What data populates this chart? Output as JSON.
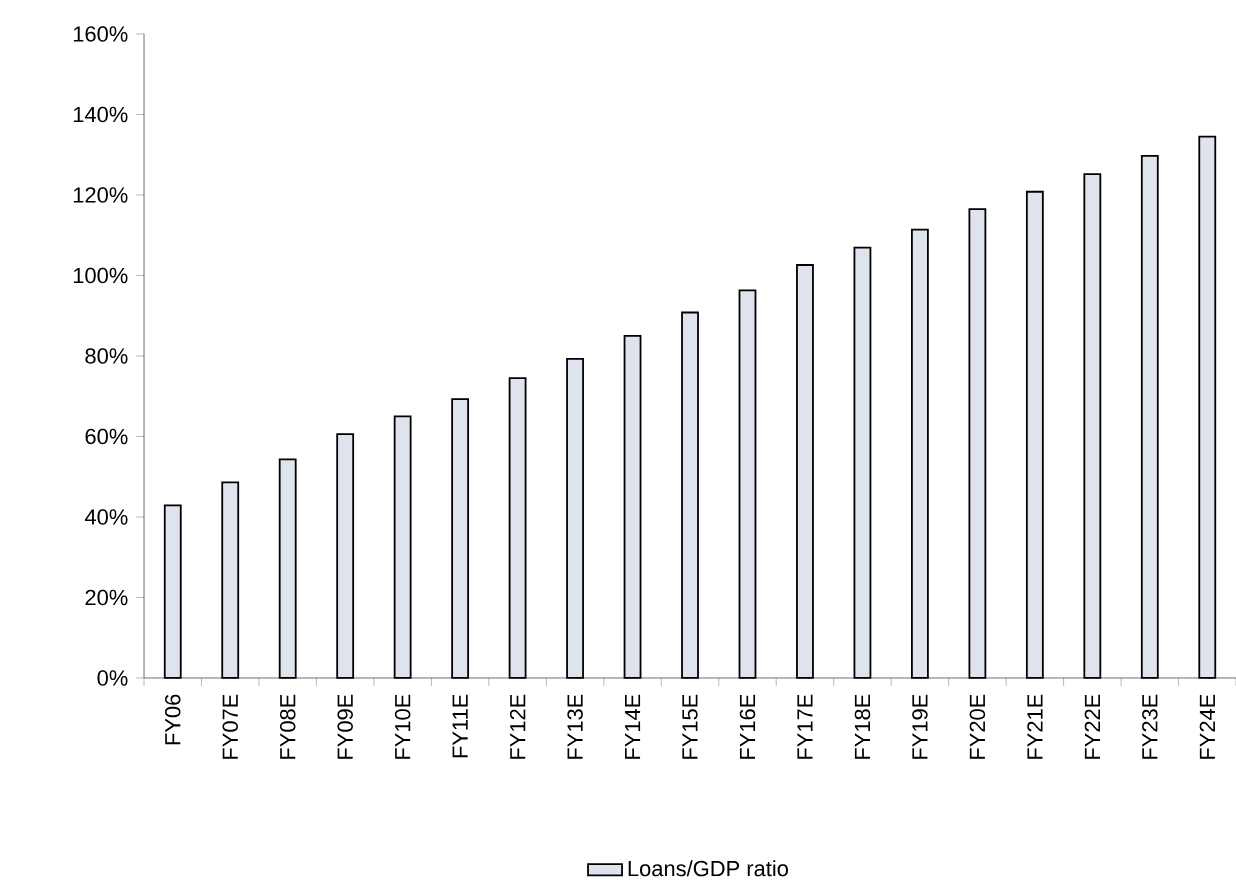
{
  "chart_data": {
    "type": "bar",
    "categories": [
      "FY06",
      "FY07E",
      "FY08E",
      "FY09E",
      "FY10E",
      "FY11E",
      "FY12E",
      "FY13E",
      "FY14E",
      "FY15E",
      "FY16E",
      "FY17E",
      "FY18E",
      "FY19E",
      "FY20E",
      "FY21E",
      "FY22E",
      "FY23E",
      "FY24E"
    ],
    "series": [
      {
        "name": "Loans/GDP ratio",
        "color": "#dfe3ee",
        "values": [
          42.9,
          48.6,
          54.3,
          60.6,
          65.0,
          69.3,
          74.5,
          79.3,
          85.0,
          90.8,
          96.3,
          102.6,
          106.9,
          111.4,
          116.5,
          120.8,
          125.2,
          129.7,
          134.5
        ]
      }
    ],
    "ylim": [
      0,
      160
    ],
    "yticks": [
      {
        "value": 0,
        "label": "0%"
      },
      {
        "value": 20,
        "label": "20%"
      },
      {
        "value": 40,
        "label": "40%"
      },
      {
        "value": 60,
        "label": "60%"
      },
      {
        "value": 80,
        "label": "80%"
      },
      {
        "value": 100,
        "label": "100%"
      },
      {
        "value": 120,
        "label": "120%"
      },
      {
        "value": 140,
        "label": "140%"
      },
      {
        "value": 160,
        "label": "160%"
      }
    ],
    "grid": false,
    "legend": "bottom"
  }
}
